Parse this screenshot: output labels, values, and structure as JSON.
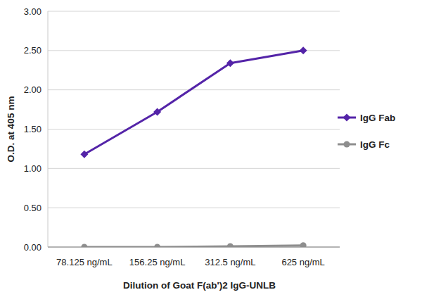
{
  "chart_data": {
    "type": "line",
    "x_label": "Dilution of Goat F(ab')2 IgG-UNLB",
    "y_label": "O.D. at 405 nm",
    "categories": [
      "78.125 ng/mL",
      "156.25 ng/mL",
      "312.5 ng/mL",
      "625 ng/mL"
    ],
    "series": [
      {
        "name": "IgG Fab",
        "color": "#5424a8",
        "marker": "diamond",
        "line_style": "solid",
        "values": [
          1.18,
          1.72,
          2.34,
          2.5
        ]
      },
      {
        "name": "IgG Fc",
        "color": "#8e8e8e",
        "marker": "circle",
        "line_style": "solid",
        "values": [
          0.0,
          0.0,
          0.01,
          0.02
        ]
      }
    ],
    "ylim": [
      0,
      3
    ],
    "yticks": [
      {
        "value": 0,
        "label": "0.00"
      },
      {
        "value": 0.5,
        "label": "0.50"
      },
      {
        "value": 1,
        "label": "1.00"
      },
      {
        "value": 1.5,
        "label": "1.50"
      },
      {
        "value": 2,
        "label": "2.00"
      },
      {
        "value": 2.5,
        "label": "2.50"
      },
      {
        "value": 3,
        "label": "3.00"
      }
    ],
    "grid": true,
    "legend": "right"
  }
}
